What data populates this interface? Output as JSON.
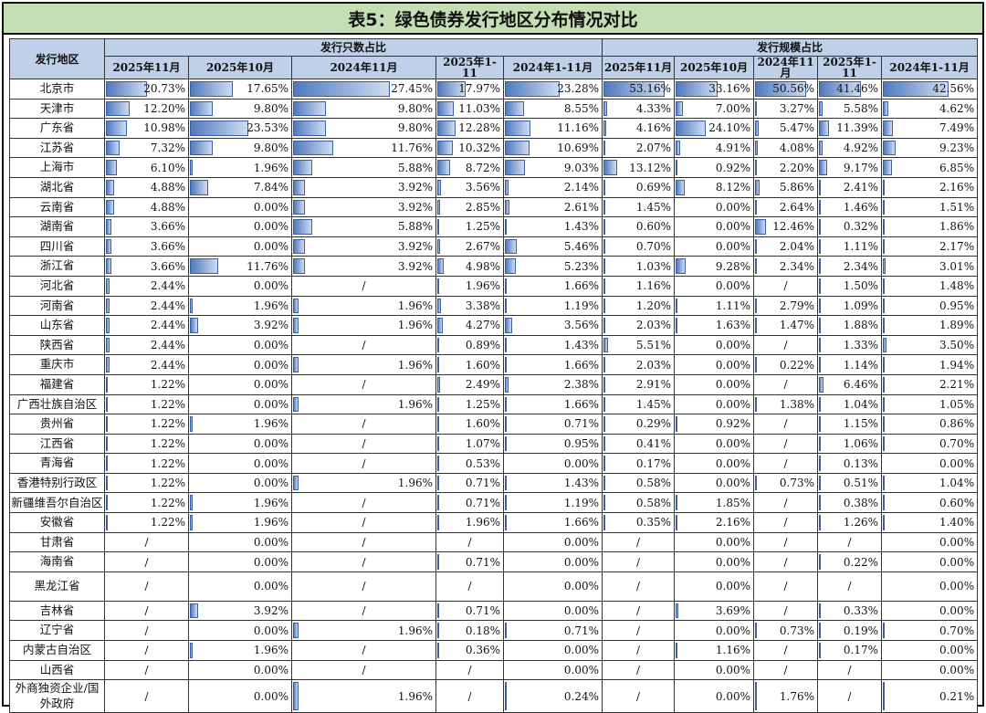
{
  "title": "表5：绿色债券发行地区分布情况对比",
  "header": {
    "region_label": "发行地区",
    "group1": "发行只数占比",
    "group2": "发行规模占比",
    "periods": [
      "2025年11月",
      "2025年10月",
      "2024年11月",
      "2025年1-11",
      "2024年1-11月",
      "2025年11月",
      "2025年10月",
      "2024年11月",
      "2025年1-11",
      "2024年1-11月"
    ]
  },
  "rows": [
    {
      "name": "北京市",
      "v": [
        "20.73%",
        "17.65%",
        "27.45%",
        "17.97%",
        "23.28%",
        "53.16%",
        "33.16%",
        "50.56%",
        "41.46%",
        "42.56%"
      ]
    },
    {
      "name": "天津市",
      "v": [
        "12.20%",
        "9.80%",
        "9.80%",
        "11.03%",
        "8.55%",
        "4.33%",
        "7.00%",
        "3.27%",
        "5.58%",
        "4.62%"
      ]
    },
    {
      "name": "广东省",
      "v": [
        "10.98%",
        "23.53%",
        "9.80%",
        "12.28%",
        "11.16%",
        "4.16%",
        "24.10%",
        "5.47%",
        "11.39%",
        "7.49%"
      ]
    },
    {
      "name": "江苏省",
      "v": [
        "7.32%",
        "9.80%",
        "11.76%",
        "10.32%",
        "10.69%",
        "2.07%",
        "4.91%",
        "4.08%",
        "4.92%",
        "9.23%"
      ]
    },
    {
      "name": "上海市",
      "v": [
        "6.10%",
        "1.96%",
        "5.88%",
        "8.72%",
        "9.03%",
        "13.12%",
        "0.92%",
        "2.20%",
        "9.17%",
        "6.85%"
      ]
    },
    {
      "name": "湖北省",
      "v": [
        "4.88%",
        "7.84%",
        "3.92%",
        "3.56%",
        "2.14%",
        "0.69%",
        "8.12%",
        "5.86%",
        "2.41%",
        "2.16%"
      ]
    },
    {
      "name": "云南省",
      "v": [
        "4.88%",
        "0.00%",
        "3.92%",
        "2.85%",
        "2.61%",
        "1.45%",
        "0.00%",
        "2.64%",
        "1.46%",
        "1.51%"
      ]
    },
    {
      "name": "湖南省",
      "v": [
        "3.66%",
        "0.00%",
        "5.88%",
        "1.25%",
        "1.43%",
        "0.60%",
        "0.00%",
        "12.46%",
        "0.32%",
        "1.86%"
      ]
    },
    {
      "name": "四川省",
      "v": [
        "3.66%",
        "0.00%",
        "3.92%",
        "2.67%",
        "5.46%",
        "0.70%",
        "0.00%",
        "2.04%",
        "1.11%",
        "2.17%"
      ]
    },
    {
      "name": "浙江省",
      "v": [
        "3.66%",
        "11.76%",
        "3.92%",
        "4.98%",
        "5.23%",
        "1.03%",
        "9.28%",
        "2.34%",
        "2.34%",
        "3.01%"
      ]
    },
    {
      "name": "河北省",
      "v": [
        "2.44%",
        "0.00%",
        "/",
        "1.96%",
        "1.66%",
        "1.16%",
        "0.00%",
        "/",
        "1.50%",
        "1.48%"
      ]
    },
    {
      "name": "河南省",
      "v": [
        "2.44%",
        "1.96%",
        "1.96%",
        "3.38%",
        "1.19%",
        "1.20%",
        "1.11%",
        "2.79%",
        "1.09%",
        "0.95%"
      ]
    },
    {
      "name": "山东省",
      "v": [
        "2.44%",
        "3.92%",
        "1.96%",
        "4.27%",
        "3.56%",
        "2.03%",
        "1.63%",
        "1.47%",
        "1.88%",
        "1.89%"
      ]
    },
    {
      "name": "陕西省",
      "v": [
        "2.44%",
        "0.00%",
        "/",
        "0.89%",
        "1.43%",
        "5.51%",
        "0.00%",
        "/",
        "1.33%",
        "3.50%"
      ]
    },
    {
      "name": "重庆市",
      "v": [
        "2.44%",
        "0.00%",
        "1.96%",
        "1.60%",
        "1.66%",
        "2.03%",
        "0.00%",
        "0.22%",
        "1.14%",
        "1.94%"
      ]
    },
    {
      "name": "福建省",
      "v": [
        "1.22%",
        "0.00%",
        "/",
        "2.49%",
        "2.38%",
        "2.91%",
        "0.00%",
        "/",
        "6.46%",
        "2.21%"
      ]
    },
    {
      "name": "广西壮族自治区",
      "v": [
        "1.22%",
        "0.00%",
        "1.96%",
        "1.25%",
        "1.66%",
        "1.45%",
        "0.00%",
        "1.38%",
        "1.04%",
        "1.05%"
      ]
    },
    {
      "name": "贵州省",
      "v": [
        "1.22%",
        "1.96%",
        "/",
        "1.60%",
        "0.71%",
        "0.29%",
        "0.92%",
        "/",
        "1.15%",
        "0.86%"
      ]
    },
    {
      "name": "江西省",
      "v": [
        "1.22%",
        "0.00%",
        "/",
        "1.07%",
        "0.95%",
        "0.41%",
        "0.00%",
        "/",
        "1.06%",
        "0.70%"
      ]
    },
    {
      "name": "青海省",
      "v": [
        "1.22%",
        "0.00%",
        "/",
        "0.53%",
        "0.00%",
        "0.17%",
        "0.00%",
        "/",
        "0.13%",
        "0.00%"
      ]
    },
    {
      "name": "香港特别行政区",
      "v": [
        "1.22%",
        "0.00%",
        "1.96%",
        "0.71%",
        "1.43%",
        "0.58%",
        "0.00%",
        "0.73%",
        "0.51%",
        "1.04%"
      ]
    },
    {
      "name": "新疆维吾尔自治区",
      "v": [
        "1.22%",
        "1.96%",
        "/",
        "0.71%",
        "1.19%",
        "0.58%",
        "1.85%",
        "/",
        "0.38%",
        "0.60%"
      ]
    },
    {
      "name": "安徽省",
      "v": [
        "1.22%",
        "1.96%",
        "/",
        "1.96%",
        "1.66%",
        "0.35%",
        "2.16%",
        "/",
        "1.26%",
        "1.40%"
      ]
    },
    {
      "name": "甘肃省",
      "v": [
        "/",
        "0.00%",
        "/",
        "/",
        "0.00%",
        "/",
        "0.00%",
        "/",
        "/",
        "0.00%"
      ]
    },
    {
      "name": "海南省",
      "v": [
        "/",
        "0.00%",
        "/",
        "0.71%",
        "0.00%",
        "/",
        "0.00%",
        "/",
        "0.22%",
        "0.00%"
      ]
    },
    {
      "name": "黑龙江省",
      "tall": true,
      "v": [
        "/",
        "0.00%",
        "/",
        "/",
        "0.00%",
        "/",
        "0.00%",
        "/",
        "/",
        "0.00%"
      ]
    },
    {
      "name": "吉林省",
      "v": [
        "/",
        "3.92%",
        "/",
        "0.71%",
        "0.00%",
        "/",
        "3.69%",
        "/",
        "0.33%",
        "0.00%"
      ]
    },
    {
      "name": "辽宁省",
      "v": [
        "/",
        "0.00%",
        "1.96%",
        "0.18%",
        "0.71%",
        "/",
        "0.00%",
        "0.73%",
        "0.19%",
        "0.70%"
      ]
    },
    {
      "name": "内蒙古自治区",
      "v": [
        "/",
        "1.96%",
        "/",
        "0.36%",
        "0.00%",
        "/",
        "1.16%",
        "/",
        "0.17%",
        "0.00%"
      ]
    },
    {
      "name": "山西省",
      "v": [
        "/",
        "0.00%",
        "/",
        "/",
        "0.00%",
        "/",
        "0.00%",
        "/",
        "/",
        "0.00%"
      ]
    },
    {
      "name": "外商独资企业/国外政府",
      "tall2": true,
      "v": [
        "/",
        "0.00%",
        "1.96%",
        "/",
        "0.24%",
        "/",
        "0.00%",
        "1.76%",
        "/",
        "0.21%"
      ]
    }
  ]
}
